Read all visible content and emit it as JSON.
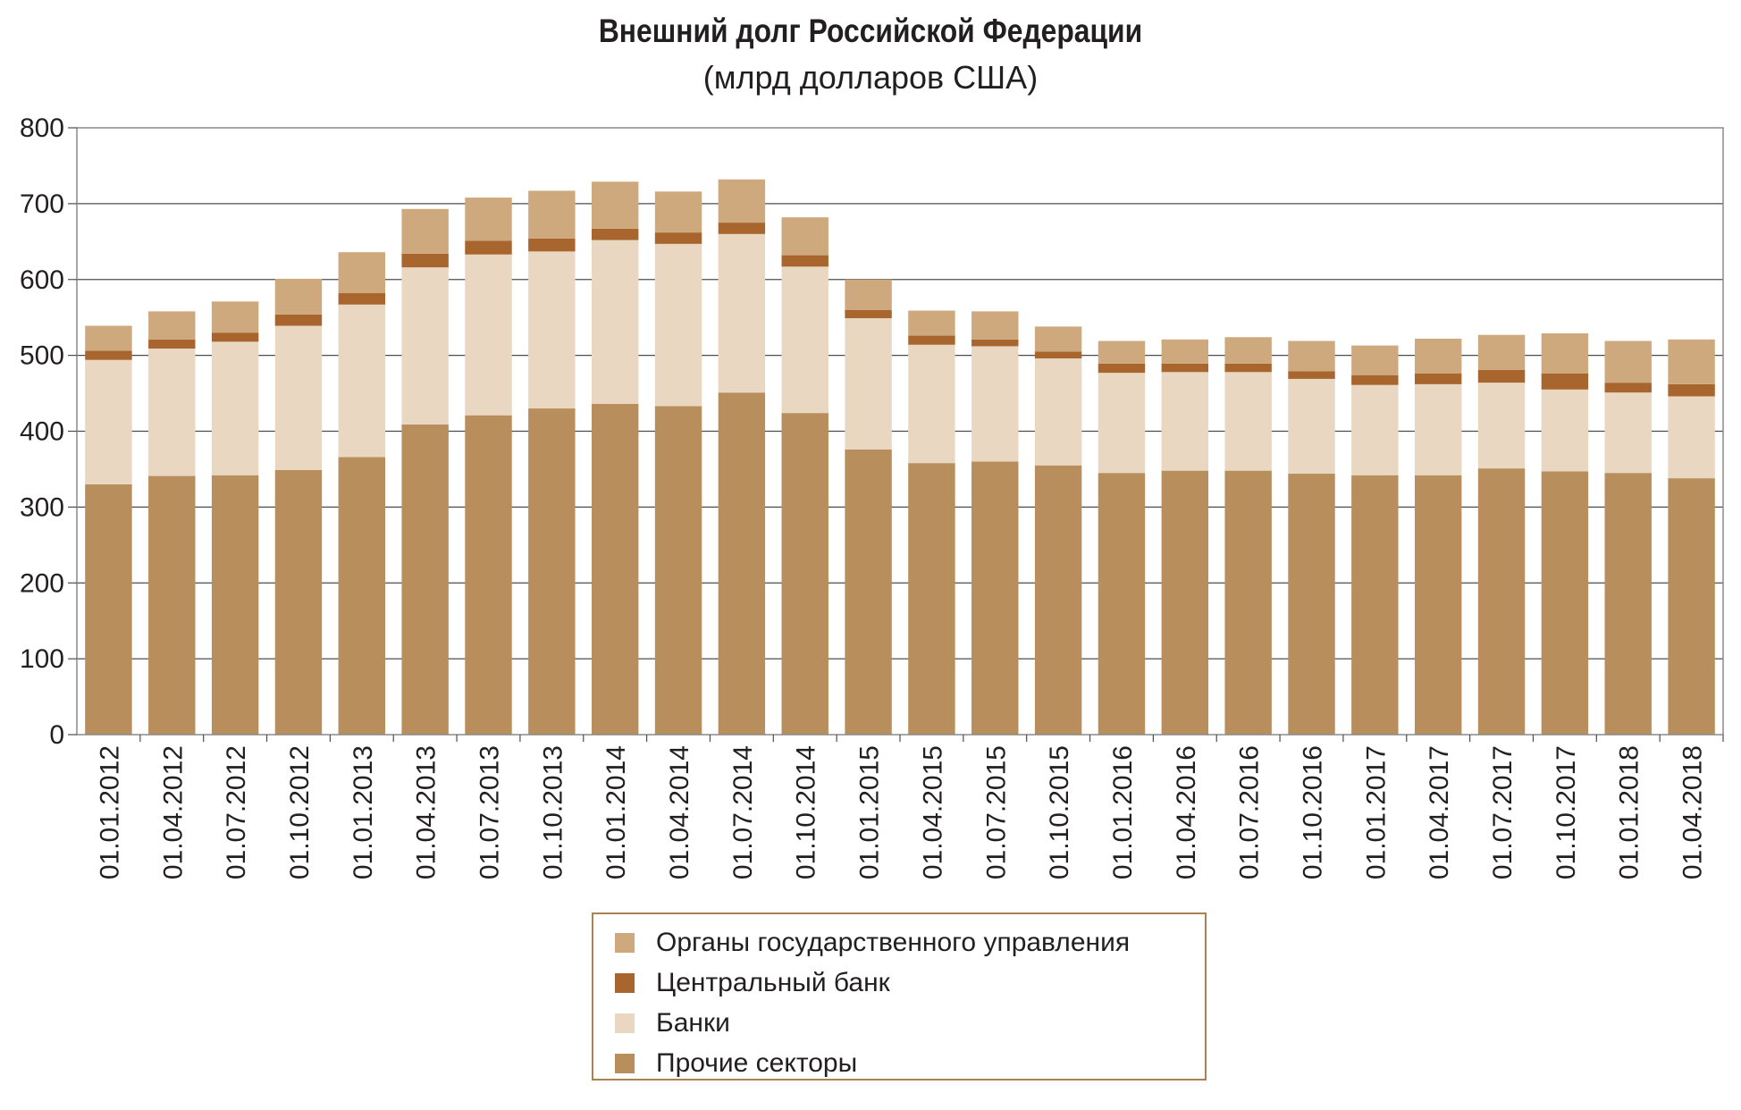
{
  "chart_data": {
    "type": "bar",
    "stacked": true,
    "title": "Внешний долг Российской Федерации",
    "subtitle": "(млрд долларов США)",
    "xlabel": "",
    "ylabel": "",
    "ylim": [
      0,
      800
    ],
    "yticks": [
      "0",
      "100",
      "200",
      "300",
      "400",
      "500",
      "600",
      "700",
      "800"
    ],
    "grid": true,
    "legend_position": "bottom",
    "categories": [
      "01.01.2012",
      "01.04.2012",
      "01.07.2012",
      "01.10.2012",
      "01.01.2013",
      "01.04.2013",
      "01.07.2013",
      "01.10.2013",
      "01.01.2014",
      "01.04.2014",
      "01.07.2014",
      "01.10.2014",
      "01.01.2015",
      "01.04.2015",
      "01.07.2015",
      "01.10.2015",
      "01.01.2016",
      "01.04.2016",
      "01.07.2016",
      "01.10.2016",
      "01.01.2017",
      "01.04.2017",
      "01.07.2017",
      "01.10.2017",
      "01.01.2018",
      "01.04.2018"
    ],
    "series": [
      {
        "name": "Прочие секторы",
        "color": "#b88f5c",
        "values": [
          330,
          341,
          342,
          349,
          366,
          409,
          421,
          430,
          436,
          433,
          451,
          424,
          376,
          358,
          360,
          355,
          345,
          348,
          348,
          344,
          342,
          342,
          351,
          347,
          345,
          338
        ]
      },
      {
        "name": "Банки",
        "color": "#ead7c2",
        "values": [
          164,
          168,
          176,
          190,
          201,
          207,
          212,
          207,
          216,
          214,
          209,
          193,
          173,
          156,
          152,
          141,
          132,
          130,
          130,
          125,
          119,
          120,
          113,
          108,
          106,
          108
        ]
      },
      {
        "name": "Центральный банк",
        "color": "#a8652e",
        "values": [
          12,
          12,
          12,
          15,
          15,
          18,
          18,
          17,
          15,
          15,
          15,
          15,
          11,
          12,
          9,
          9,
          12,
          11,
          11,
          10,
          13,
          14,
          17,
          21,
          13,
          16
        ]
      },
      {
        "name": "Органы государственного управления",
        "color": "#cfa97e",
        "values": [
          33,
          37,
          41,
          47,
          54,
          59,
          57,
          63,
          62,
          54,
          57,
          50,
          40,
          33,
          37,
          33,
          30,
          32,
          35,
          40,
          39,
          46,
          46,
          53,
          55,
          59
        ]
      }
    ]
  }
}
